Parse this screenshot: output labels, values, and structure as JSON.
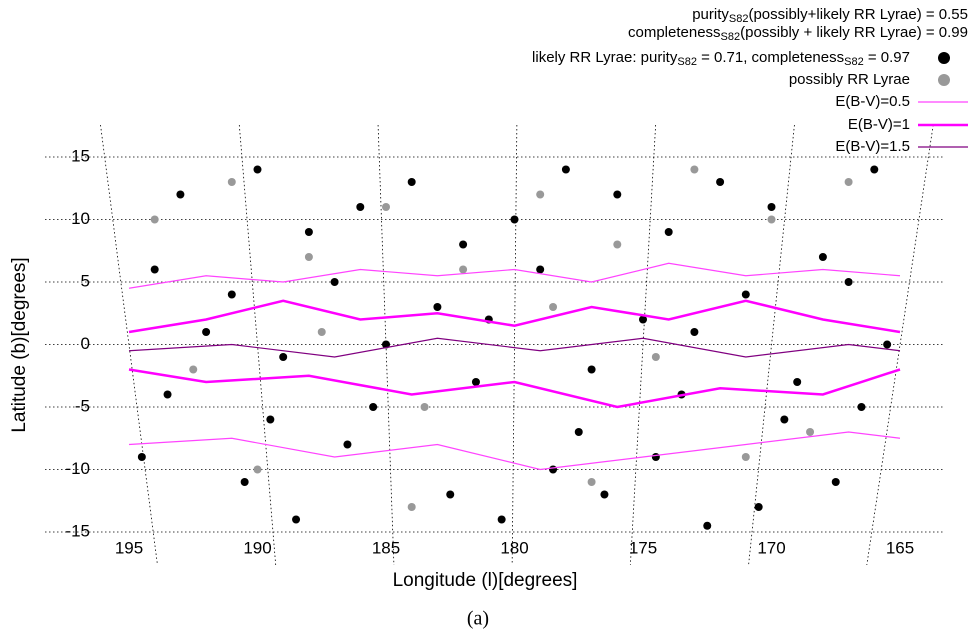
{
  "chart_data": {
    "type": "scatter",
    "caption": "(a)",
    "xlabel": "Longitude (l)[degrees]",
    "ylabel": "Latitude (b)[degrees]",
    "annotations": [
      [
        "purity",
        "S82",
        "(possibly+likely RR Lyrae) = 0.55"
      ],
      [
        "completeness",
        "S82",
        "(possibly + likely RR Lyrae) = 0.99"
      ]
    ],
    "xlim": [
      195,
      165
    ],
    "ylim": [
      -15,
      15
    ],
    "xticks": [
      195,
      190,
      185,
      180,
      175,
      170,
      165
    ],
    "yticks": [
      -15,
      -10,
      -5,
      0,
      5,
      10,
      15
    ],
    "grid": true,
    "series": [
      {
        "name": [
          "likely RR Lyrae: purity",
          "S82",
          " = 0.71, completeness",
          "S82",
          " = 0.97"
        ],
        "mode": "markers",
        "color": "#000000",
        "x": [
          193,
          190,
          188,
          186,
          184,
          182,
          180,
          178,
          176,
          174,
          172,
          170,
          168,
          166,
          194,
          191,
          187,
          183,
          179,
          175,
          171,
          167,
          192,
          189,
          185,
          181,
          177,
          173,
          169,
          165.5,
          193.5,
          189.5,
          185.5,
          181.5,
          177.5,
          173.5,
          169.5,
          166.5,
          194.5,
          190.5,
          186.5,
          182.5,
          178.5,
          174.5,
          170.5,
          167.5,
          188.5,
          180.5,
          176.5,
          172.5
        ],
        "y": [
          12,
          14,
          9,
          11,
          13,
          8,
          10,
          14,
          12,
          9,
          13,
          11,
          7,
          14,
          6,
          4,
          5,
          3,
          6,
          2,
          4,
          5,
          1,
          -1,
          0,
          2,
          -2,
          1,
          -3,
          0,
          -4,
          -6,
          -5,
          -3,
          -7,
          -4,
          -6,
          -5,
          -9,
          -11,
          -8,
          -12,
          -10,
          -9,
          -13,
          -11,
          -14,
          -14,
          -12,
          -14.5
        ]
      },
      {
        "name": [
          "possibly RR Lyrae"
        ],
        "mode": "markers",
        "color": "#999999",
        "x": [
          194,
          191,
          188,
          185,
          182,
          179,
          176,
          173,
          170,
          167,
          192.5,
          187.5,
          183.5,
          178.5,
          174.5,
          168.5,
          190,
          184,
          177,
          171
        ],
        "y": [
          10,
          13,
          7,
          11,
          6,
          12,
          8,
          14,
          10,
          13,
          -2,
          1,
          -5,
          3,
          -1,
          -7,
          -10,
          -13,
          -11,
          -9
        ]
      },
      {
        "name": [
          "E(B-V)=0.5"
        ],
        "mode": "lines",
        "color": "#ff44ff",
        "line_width": 1.2,
        "x": [
          195,
          192,
          189,
          186,
          183,
          180,
          177,
          174,
          171,
          168,
          165,
          null,
          195,
          191,
          187,
          183,
          179,
          175,
          171,
          167,
          165
        ],
        "y": [
          4.5,
          5.5,
          5,
          6,
          5.5,
          6,
          5,
          6.5,
          5.5,
          6,
          5.5,
          null,
          -8,
          -7.5,
          -9,
          -8,
          -10,
          -9,
          -8,
          -7,
          -7.5
        ]
      },
      {
        "name": [
          "E(B-V)=1"
        ],
        "mode": "lines",
        "color": "#ff00ff",
        "line_width": 2.5,
        "x": [
          195,
          192,
          189,
          186,
          183,
          180,
          177,
          174,
          171,
          168,
          165,
          null,
          195,
          192,
          188,
          184,
          180,
          176,
          172,
          168,
          165
        ],
        "y": [
          1,
          2,
          3.5,
          2,
          2.5,
          1.5,
          3,
          2,
          3.5,
          2,
          1,
          null,
          -2,
          -3,
          -2.5,
          -4,
          -3,
          -5,
          -3.5,
          -4,
          -2
        ]
      },
      {
        "name": [
          "E(B-V)=1.5"
        ],
        "mode": "lines",
        "color": "#800080",
        "line_width": 1.2,
        "x": [
          195,
          191,
          187,
          183,
          179,
          175,
          171,
          167,
          165
        ],
        "y": [
          -0.5,
          0,
          -1,
          0.5,
          -0.5,
          0.5,
          -1,
          0,
          -0.5
        ]
      }
    ]
  }
}
